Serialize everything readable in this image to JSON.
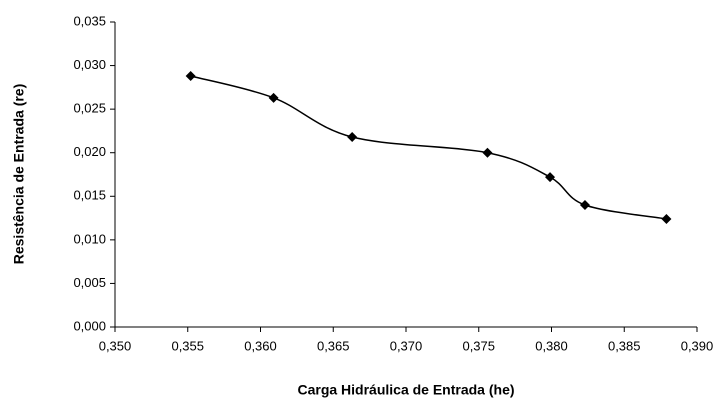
{
  "chart_data": {
    "type": "scatter",
    "smooth": true,
    "x_label": "Carga Hidráulica de Entrada (he)",
    "y_label": "Resistência de Entrada (re)",
    "x": [
      0.3552,
      0.3609,
      0.3663,
      0.3756,
      0.3799,
      0.3823,
      0.3879
    ],
    "values": [
      0.0288,
      0.0263,
      0.0218,
      0.02,
      0.0172,
      0.014,
      0.0124
    ],
    "color": "#000000",
    "xlim": [
      0.35,
      0.39
    ],
    "xticks": [
      {
        "value": 0.35,
        "label": "0,350"
      },
      {
        "value": 0.355,
        "label": "0,355"
      },
      {
        "value": 0.36,
        "label": "0,360"
      },
      {
        "value": 0.365,
        "label": "0,365"
      },
      {
        "value": 0.37,
        "label": "0,370"
      },
      {
        "value": 0.375,
        "label": "0,375"
      },
      {
        "value": 0.38,
        "label": "0,380"
      },
      {
        "value": 0.385,
        "label": "0,385"
      },
      {
        "value": 0.39,
        "label": "0,390"
      }
    ],
    "ylim": [
      0,
      0.035
    ],
    "yticks": [
      {
        "value": 0,
        "label": "0,000"
      },
      {
        "value": 0.005,
        "label": "0,005"
      },
      {
        "value": 0.01,
        "label": "0,010"
      },
      {
        "value": 0.015,
        "label": "0,015"
      },
      {
        "value": 0.02,
        "label": "0,020"
      },
      {
        "value": 0.025,
        "label": "0,025"
      },
      {
        "value": 0.03,
        "label": "0,030"
      },
      {
        "value": 0.035,
        "label": "0,035"
      }
    ],
    "grid": false
  }
}
